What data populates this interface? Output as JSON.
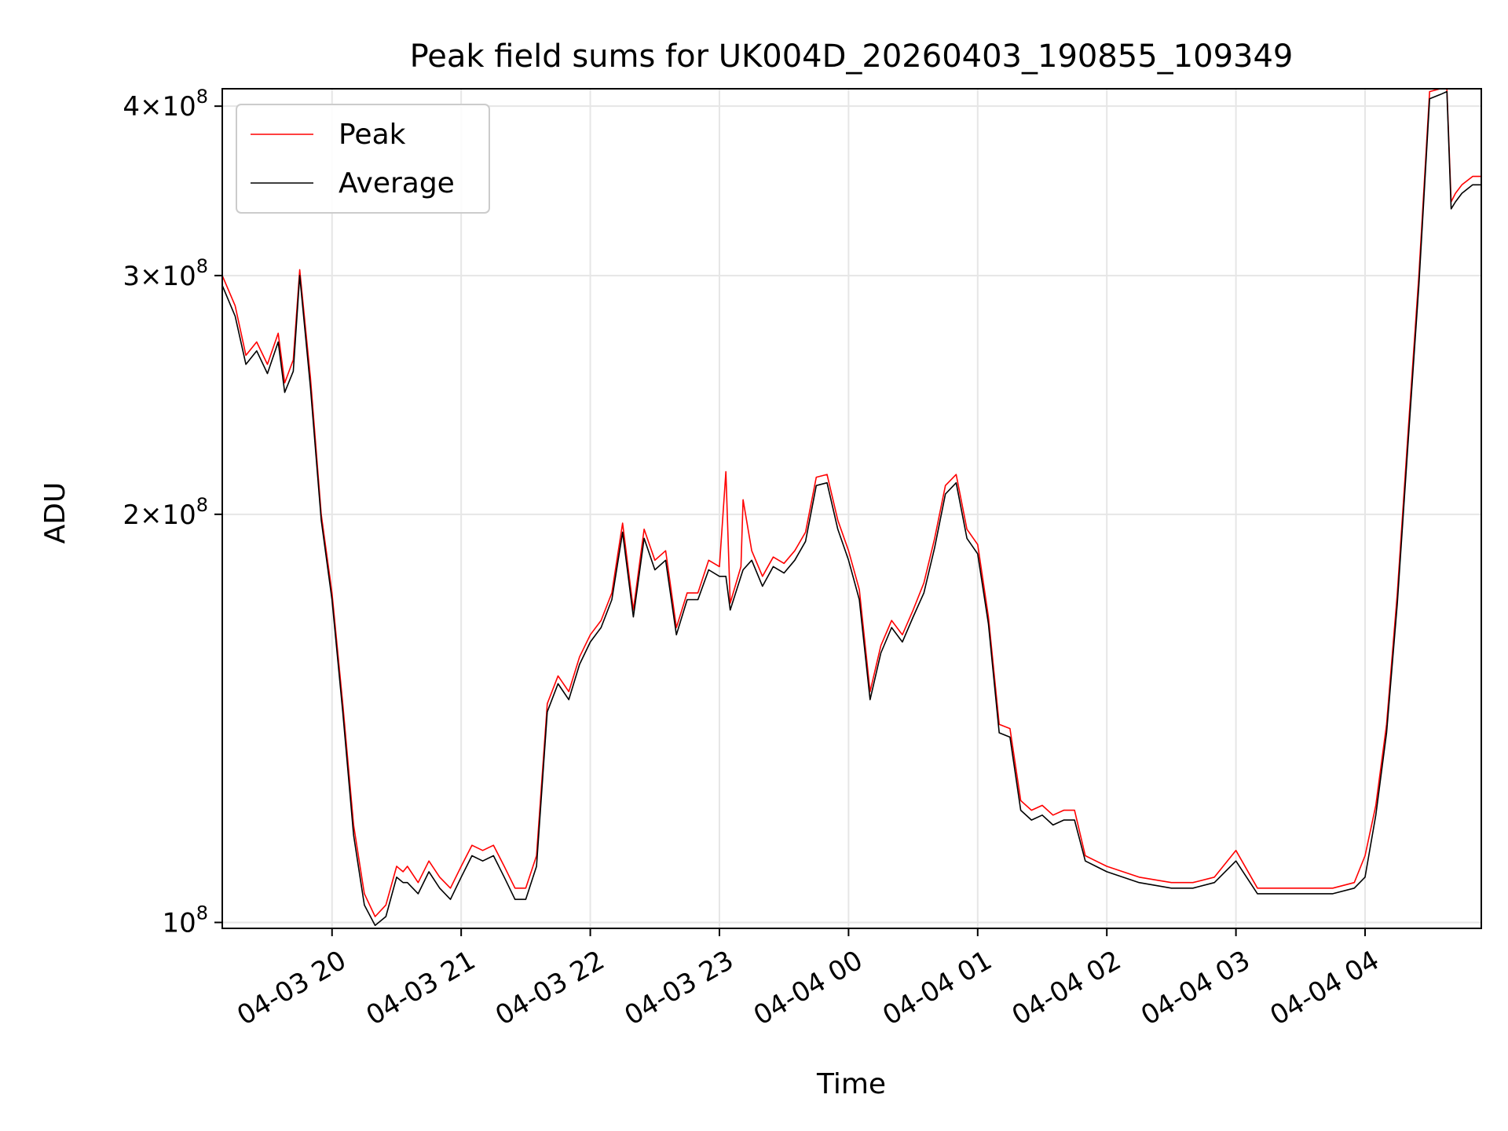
{
  "chart_data": {
    "type": "line",
    "title": "Peak field sums for UK004D_20260403_190855_109349",
    "xlabel": "Time",
    "ylabel": "ADU",
    "y_scale": "log",
    "xlim": [
      "2026-04-03 19:09",
      "2026-04-04 04:54"
    ],
    "ylim": [
      99000000,
      412000000
    ],
    "x_ticks": [
      "04-03 20",
      "04-03 21",
      "04-03 22",
      "04-03 23",
      "04-04 00",
      "04-04 01",
      "04-04 02",
      "04-04 03",
      "04-04 04"
    ],
    "x_tick_rotation_deg": 30,
    "y_ticks": [
      {
        "value": 100000000,
        "mantissa": "",
        "exponent": "8"
      },
      {
        "value": 200000000,
        "mantissa": "2",
        "exponent": "8"
      },
      {
        "value": 300000000,
        "mantissa": "3",
        "exponent": "8"
      },
      {
        "value": 400000000,
        "mantissa": "4",
        "exponent": "8"
      }
    ],
    "grid": true,
    "legend_position": "upper-left",
    "series": [
      {
        "name": "Peak",
        "color": "#ff0000",
        "x": [
          "2026-04-03 19:09",
          "2026-04-03 19:15",
          "2026-04-03 19:20",
          "2026-04-03 19:25",
          "2026-04-03 19:30",
          "2026-04-03 19:35",
          "2026-04-03 19:38",
          "2026-04-03 19:42",
          "2026-04-03 19:45",
          "2026-04-03 19:50",
          "2026-04-03 19:55",
          "2026-04-03 20:00",
          "2026-04-03 20:05",
          "2026-04-03 20:10",
          "2026-04-03 20:13",
          "2026-04-03 20:15",
          "2026-04-03 20:20",
          "2026-04-03 20:25",
          "2026-04-03 20:30",
          "2026-04-03 20:33",
          "2026-04-03 20:35",
          "2026-04-03 20:40",
          "2026-04-03 20:45",
          "2026-04-03 20:50",
          "2026-04-03 20:55",
          "2026-04-03 21:00",
          "2026-04-03 21:05",
          "2026-04-03 21:10",
          "2026-04-03 21:15",
          "2026-04-03 21:20",
          "2026-04-03 21:25",
          "2026-04-03 21:30",
          "2026-04-03 21:35",
          "2026-04-03 21:40",
          "2026-04-03 21:45",
          "2026-04-03 21:50",
          "2026-04-03 21:55",
          "2026-04-03 22:00",
          "2026-04-03 22:05",
          "2026-04-03 22:10",
          "2026-04-03 22:15",
          "2026-04-03 22:20",
          "2026-04-03 22:25",
          "2026-04-03 22:30",
          "2026-04-03 22:35",
          "2026-04-03 22:40",
          "2026-04-03 22:45",
          "2026-04-03 22:50",
          "2026-04-03 22:55",
          "2026-04-03 23:00",
          "2026-04-03 23:03",
          "2026-04-03 23:05",
          "2026-04-03 23:10",
          "2026-04-03 23:11",
          "2026-04-03 23:15",
          "2026-04-03 23:20",
          "2026-04-03 23:25",
          "2026-04-03 23:30",
          "2026-04-03 23:35",
          "2026-04-03 23:40",
          "2026-04-03 23:45",
          "2026-04-03 23:50",
          "2026-04-03 23:55",
          "2026-04-04 00:00",
          "2026-04-04 00:05",
          "2026-04-04 00:10",
          "2026-04-04 00:15",
          "2026-04-04 00:20",
          "2026-04-04 00:25",
          "2026-04-04 00:30",
          "2026-04-04 00:35",
          "2026-04-04 00:40",
          "2026-04-04 00:45",
          "2026-04-04 00:50",
          "2026-04-04 00:55",
          "2026-04-04 01:00",
          "2026-04-04 01:05",
          "2026-04-04 01:10",
          "2026-04-04 01:15",
          "2026-04-04 01:20",
          "2026-04-04 01:25",
          "2026-04-04 01:30",
          "2026-04-04 01:35",
          "2026-04-04 01:40",
          "2026-04-04 01:45",
          "2026-04-04 01:50",
          "2026-04-04 02:00",
          "2026-04-04 02:15",
          "2026-04-04 02:30",
          "2026-04-04 02:40",
          "2026-04-04 02:50",
          "2026-04-04 03:00",
          "2026-04-04 03:10",
          "2026-04-04 03:20",
          "2026-04-04 03:30",
          "2026-04-04 03:45",
          "2026-04-04 03:55",
          "2026-04-04 04:00",
          "2026-04-04 04:05",
          "2026-04-04 04:10",
          "2026-04-04 04:15",
          "2026-04-04 04:20",
          "2026-04-04 04:25",
          "2026-04-04 04:30",
          "2026-04-04 04:35",
          "2026-04-04 04:38",
          "2026-04-04 04:40",
          "2026-04-04 04:42",
          "2026-04-04 04:45",
          "2026-04-04 04:50",
          "2026-04-04 04:54"
        ],
        "values": [
          300000000,
          285000000,
          262000000,
          268000000,
          258000000,
          272000000,
          250000000,
          260000000,
          303000000,
          252000000,
          200000000,
          175000000,
          145000000,
          118000000,
          110000000,
          105000000,
          101000000,
          103000000,
          110000000,
          109000000,
          110000000,
          107000000,
          111000000,
          108000000,
          106000000,
          110000000,
          114000000,
          113000000,
          114000000,
          110000000,
          106000000,
          106000000,
          112000000,
          145000000,
          152000000,
          148000000,
          157000000,
          163000000,
          167000000,
          175000000,
          197000000,
          170000000,
          195000000,
          185000000,
          188000000,
          165000000,
          175000000,
          175000000,
          185000000,
          183000000,
          215000000,
          172000000,
          183000000,
          205000000,
          188000000,
          180000000,
          186000000,
          184000000,
          188000000,
          194000000,
          213000000,
          214000000,
          198000000,
          188000000,
          176000000,
          148000000,
          160000000,
          167000000,
          163000000,
          170000000,
          178000000,
          192000000,
          210000000,
          214000000,
          195000000,
          190000000,
          168000000,
          140000000,
          139000000,
          123000000,
          121000000,
          122000000,
          120000000,
          121000000,
          121000000,
          112000000,
          110000000,
          108000000,
          107000000,
          107000000,
          108000000,
          113000000,
          106000000,
          106000000,
          106000000,
          106000000,
          107000000,
          112000000,
          122000000,
          140000000,
          175000000,
          230000000,
          300000000,
          410000000,
          412000000,
          412000000,
          340000000,
          345000000,
          350000000,
          355000000,
          355000000
        ]
      },
      {
        "name": "Average",
        "color": "#000000",
        "x": [
          "2026-04-03 19:09",
          "2026-04-03 19:15",
          "2026-04-03 19:20",
          "2026-04-03 19:25",
          "2026-04-03 19:30",
          "2026-04-03 19:35",
          "2026-04-03 19:38",
          "2026-04-03 19:42",
          "2026-04-03 19:45",
          "2026-04-03 19:50",
          "2026-04-03 19:55",
          "2026-04-03 20:00",
          "2026-04-03 20:05",
          "2026-04-03 20:10",
          "2026-04-03 20:13",
          "2026-04-03 20:15",
          "2026-04-03 20:20",
          "2026-04-03 20:25",
          "2026-04-03 20:30",
          "2026-04-03 20:33",
          "2026-04-03 20:35",
          "2026-04-03 20:40",
          "2026-04-03 20:45",
          "2026-04-03 20:50",
          "2026-04-03 20:55",
          "2026-04-03 21:00",
          "2026-04-03 21:05",
          "2026-04-03 21:10",
          "2026-04-03 21:15",
          "2026-04-03 21:20",
          "2026-04-03 21:25",
          "2026-04-03 21:30",
          "2026-04-03 21:35",
          "2026-04-03 21:40",
          "2026-04-03 21:45",
          "2026-04-03 21:50",
          "2026-04-03 21:55",
          "2026-04-03 22:00",
          "2026-04-03 22:05",
          "2026-04-03 22:10",
          "2026-04-03 22:15",
          "2026-04-03 22:20",
          "2026-04-03 22:25",
          "2026-04-03 22:30",
          "2026-04-03 22:35",
          "2026-04-03 22:40",
          "2026-04-03 22:45",
          "2026-04-03 22:50",
          "2026-04-03 22:55",
          "2026-04-03 23:00",
          "2026-04-03 23:03",
          "2026-04-03 23:05",
          "2026-04-03 23:10",
          "2026-04-03 23:11",
          "2026-04-03 23:15",
          "2026-04-03 23:20",
          "2026-04-03 23:25",
          "2026-04-03 23:30",
          "2026-04-03 23:35",
          "2026-04-03 23:40",
          "2026-04-03 23:45",
          "2026-04-03 23:50",
          "2026-04-03 23:55",
          "2026-04-04 00:00",
          "2026-04-04 00:05",
          "2026-04-04 00:10",
          "2026-04-04 00:15",
          "2026-04-04 00:20",
          "2026-04-04 00:25",
          "2026-04-04 00:30",
          "2026-04-04 00:35",
          "2026-04-04 00:40",
          "2026-04-04 00:45",
          "2026-04-04 00:50",
          "2026-04-04 00:55",
          "2026-04-04 01:00",
          "2026-04-04 01:05",
          "2026-04-04 01:10",
          "2026-04-04 01:15",
          "2026-04-04 01:20",
          "2026-04-04 01:25",
          "2026-04-04 01:30",
          "2026-04-04 01:35",
          "2026-04-04 01:40",
          "2026-04-04 01:45",
          "2026-04-04 01:50",
          "2026-04-04 02:00",
          "2026-04-04 02:15",
          "2026-04-04 02:30",
          "2026-04-04 02:40",
          "2026-04-04 02:50",
          "2026-04-04 03:00",
          "2026-04-04 03:10",
          "2026-04-04 03:20",
          "2026-04-04 03:30",
          "2026-04-04 03:45",
          "2026-04-04 03:55",
          "2026-04-04 04:00",
          "2026-04-04 04:05",
          "2026-04-04 04:10",
          "2026-04-04 04:15",
          "2026-04-04 04:20",
          "2026-04-04 04:25",
          "2026-04-04 04:30",
          "2026-04-04 04:35",
          "2026-04-04 04:38",
          "2026-04-04 04:40",
          "2026-04-04 04:42",
          "2026-04-04 04:45",
          "2026-04-04 04:50",
          "2026-04-04 04:54"
        ],
        "values": [
          295000000,
          280000000,
          258000000,
          264000000,
          254000000,
          268000000,
          246000000,
          255000000,
          300000000,
          248000000,
          198000000,
          173000000,
          143000000,
          116000000,
          108000000,
          103000000,
          99500000,
          101000000,
          108000000,
          107000000,
          107000000,
          105000000,
          109000000,
          106000000,
          104000000,
          108000000,
          112000000,
          111000000,
          112000000,
          108000000,
          104000000,
          104000000,
          110000000,
          143000000,
          150000000,
          146000000,
          155000000,
          161000000,
          165000000,
          173000000,
          194000000,
          168000000,
          192000000,
          182000000,
          185000000,
          163000000,
          173000000,
          173000000,
          182000000,
          180000000,
          180000000,
          170000000,
          180000000,
          182000000,
          185000000,
          177000000,
          183000000,
          181000000,
          185000000,
          191000000,
          210000000,
          211000000,
          195000000,
          185000000,
          173000000,
          146000000,
          158000000,
          165000000,
          161000000,
          168000000,
          175000000,
          189000000,
          207000000,
          211000000,
          192000000,
          187000000,
          166000000,
          138000000,
          137000000,
          121000000,
          119000000,
          120000000,
          118000000,
          119000000,
          119000000,
          111000000,
          109000000,
          107000000,
          106000000,
          106000000,
          107000000,
          111000000,
          105000000,
          105000000,
          105000000,
          105000000,
          106000000,
          108000000,
          120000000,
          138000000,
          172000000,
          226000000,
          295000000,
          405000000,
          408000000,
          410000000,
          336000000,
          340000000,
          345000000,
          350000000,
          350000000
        ]
      }
    ]
  }
}
